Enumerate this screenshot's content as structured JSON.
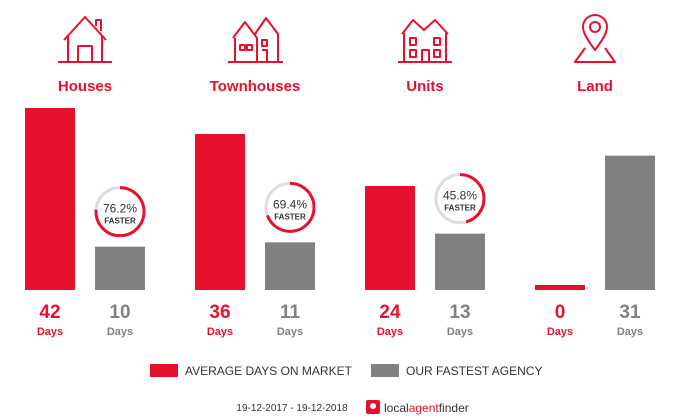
{
  "colors": {
    "red": "#e8112d",
    "gray": "#808080",
    "ring_track": "#dddddd",
    "text_dark": "#333333"
  },
  "categories": [
    {
      "name": "Houses",
      "icon": "house-icon"
    },
    {
      "name": "Townhouses",
      "icon": "townhouse-icon"
    },
    {
      "name": "Units",
      "icon": "units-icon"
    },
    {
      "name": "Land",
      "icon": "land-pin-icon"
    }
  ],
  "chart_data": {
    "type": "bar",
    "categories": [
      "Houses",
      "Townhouses",
      "Units",
      "Land"
    ],
    "series": [
      {
        "name": "AVERAGE DAYS ON MARKET",
        "values": [
          42,
          36,
          24,
          0
        ],
        "color": "#e8112d"
      },
      {
        "name": "OUR FASTEST AGENCY",
        "values": [
          10,
          11,
          13,
          31
        ],
        "color": "#808080"
      }
    ],
    "value_unit": "Days",
    "faster": [
      {
        "label": "76.2%",
        "fraction": 0.762
      },
      {
        "label": "69.4%",
        "fraction": 0.694
      },
      {
        "label": "45.8%",
        "fraction": 0.458
      },
      null
    ],
    "faster_text": "FASTER",
    "ylim": [
      0,
      42
    ]
  },
  "footer": {
    "date_range": "19-12-2017 - 19-12-2018",
    "brand_local": "local",
    "brand_agent": "agent",
    "brand_finder": "finder"
  }
}
